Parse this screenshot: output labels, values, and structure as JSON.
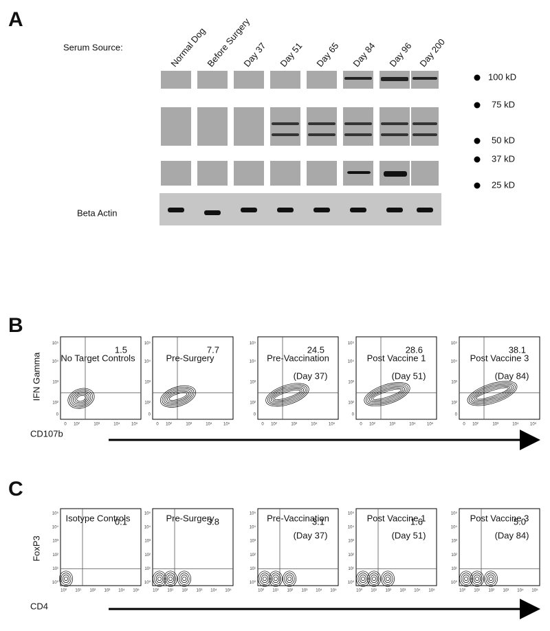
{
  "panel_a": {
    "label": "A",
    "serum_source": "Serum Source:",
    "lanes": [
      "Normal Dog",
      "Before Surgery",
      "Day 37",
      "Day 51",
      "Day 65",
      "Day 84",
      "Day 96",
      "Day 200"
    ],
    "markers": [
      "100 kD",
      "75 kD",
      "50 kD",
      "37 kD",
      "25 kD"
    ],
    "beta_actin": "Beta Actin"
  },
  "panel_b": {
    "label": "B",
    "y_axis": "IFN Gamma",
    "x_axis": "CD107b",
    "ticks": [
      "0",
      "10²",
      "10³",
      "10⁴",
      "10⁵"
    ],
    "plots": [
      {
        "title": "No Target Controls",
        "value": "1.5"
      },
      {
        "title": "Pre-Surgery",
        "value": "7.7"
      },
      {
        "title": "Pre-Vaccination",
        "subtitle": "(Day 37)",
        "value": "24.5"
      },
      {
        "title": "Post Vaccine 1",
        "subtitle": "(Day 51)",
        "value": "28.6"
      },
      {
        "title": "Post Vaccine 3",
        "subtitle": "(Day 84)",
        "value": "38.1"
      }
    ]
  },
  "panel_c": {
    "label": "C",
    "y_axis": "FoxP3",
    "x_axis": "CD4",
    "ticks": [
      "10⁰",
      "10¹",
      "10²",
      "10³",
      "10⁴",
      "10⁵"
    ],
    "plots": [
      {
        "title": "Isotype Controls",
        "value": "0.1"
      },
      {
        "title": "Pre-Surgery",
        "value": "3.8"
      },
      {
        "title": "Pre-Vaccination",
        "subtitle": "(Day 37)",
        "value": "3.1"
      },
      {
        "title": "Post Vaccine 1",
        "subtitle": "(Day 51)",
        "value": "1.6"
      },
      {
        "title": "Post Vaccine 3",
        "subtitle": "(Day 84)",
        "value": "5.0"
      }
    ]
  }
}
